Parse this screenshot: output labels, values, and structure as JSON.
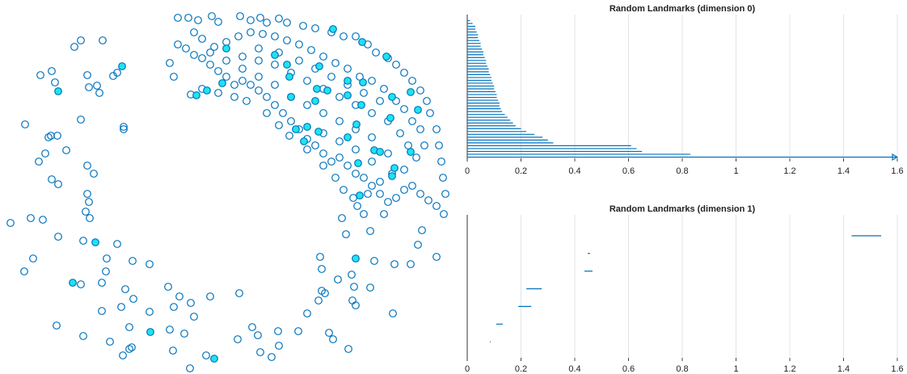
{
  "chart_data": [
    {
      "type": "scatter",
      "xlim": [
        0,
        560
      ],
      "ylim": [
        465,
        0
      ],
      "series": [
        {
          "color": "#0072bd",
          "fill": "none",
          "x": [
            100,
            127,
            92,
            64,
            50,
            68,
            108,
            110,
            120,
            123,
            145,
            140,
            153,
            153,
            31,
            100,
            63,
            60,
            71,
            56,
            82,
            48,
            108,
            116,
            64,
            72,
            108,
            110,
            106,
            111,
            13,
            38,
            53,
            72,
            103,
            145,
            41,
            30,
            132,
            164,
            185,
            131,
            126,
            100,
            155,
            165,
            208,
            222,
            236,
            260,
            296,
            126,
            150,
            185,
            215,
            240,
            70,
            160,
            210,
            228,
            103,
            136,
            160,
            152,
            163,
            214,
            235,
            255,
            294,
            312,
            319,
            322,
            336,
            345,
            344,
            369,
            380,
            394,
            398,
            402,
            396,
            398,
            418,
            407,
            412,
            431,
            436,
            440,
            438,
            435,
            458,
            463,
            488,
            486,
            508,
            517,
            522,
            540,
            475,
            458,
            428,
            450,
            423,
            442,
            220,
            233,
            245,
            262,
            270,
            297,
            310,
            322,
            330,
            345,
            355,
            375,
            390,
            410,
            425,
            440,
            455,
            465,
            480,
            490,
            500,
            510,
            520,
            528,
            532,
            540,
            543,
            546,
            548,
            551,
            549,
            540,
            530,
            520,
            510,
            500,
            490,
            480,
            470,
            460,
            450,
            440,
            430,
            420,
            410,
            400,
            390,
            380,
            370,
            360,
            350,
            340,
            330,
            320,
            310,
            300,
            290,
            280,
            270,
            260,
            250,
            240,
            230,
            220,
            210,
            215,
            236,
            250,
            270,
            290,
            305,
            330,
            345,
            358,
            380,
            400,
            415,
            425,
            437,
            455,
            470,
            485,
            500,
            515,
            525,
            520,
            510,
            500,
            490,
            475,
            460,
            445,
            430,
            415,
            400,
            385,
            370,
            355,
            340,
            325,
            310,
            295,
            280,
            265,
            250,
            240,
            300,
            320,
            340,
            360,
            380,
            400,
            420,
            440,
            460,
            480,
            495,
            505,
            320,
            345,
            370,
            390,
            410,
            430,
            450,
            470,
            460,
            440,
            420,
            400,
            380,
            360,
            340,
            320,
            300,
            280,
            260,
            440,
            460,
            480,
            420,
            400
          ],
          "values": [
            50,
            50,
            58,
            88,
            93,
            102,
            93,
            108,
            106,
            115,
            90,
            94,
            157,
            160,
            154,
            148,
            168,
            170,
            168,
            190,
            186,
            200,
            205,
            215,
            222,
            228,
            240,
            250,
            262,
            270,
            276,
            270,
            272,
            293,
            298,
            302,
            320,
            336,
            320,
            323,
            327,
            336,
            350,
            352,
            358,
            370,
            355,
            367,
            375,
            367,
            363,
            385,
            380,
            386,
            380,
            392,
            403,
            405,
            408,
            413,
            416,
            423,
            432,
            440,
            430,
            434,
            456,
            440,
            420,
            405,
            415,
            436,
            442,
            428,
            410,
            410,
            388,
            372,
            360,
            363,
            318,
            333,
            346,
            412,
            420,
            432,
            372,
            378,
            355,
            340,
            356,
            323,
            327,
            388,
            327,
            303,
            285,
            318,
            265,
            286,
            290,
            265,
            270,
            255,
            22,
            22,
            25,
            20,
            27,
            20,
            25,
            22,
            28,
            23,
            28,
            32,
            35,
            40,
            45,
            45,
            55,
            65,
            72,
            80,
            90,
            100,
            112,
            125,
            140,
            160,
            180,
            200,
            220,
            240,
            265,
            255,
            248,
            240,
            230,
            235,
            245,
            250,
            240,
            230,
            220,
            215,
            205,
            195,
            200,
            190,
            180,
            172,
            160,
            150,
            140,
            130,
            120,
            112,
            105,
            100,
            105,
            95,
            88,
            80,
            72,
            68,
            60,
            55,
            78,
            95,
            117,
            110,
            115,
            120,
            125,
            140,
            155,
            168,
            185,
            205,
            220,
            235,
            245,
            240,
            225,
            215,
            210,
            195,
            180,
            160,
            150,
            135,
            125,
            110,
            100,
            95,
            85,
            78,
            70,
            62,
            55,
            50,
            45,
            42,
            40,
            45,
            52,
            58,
            48,
            40,
            70,
            75,
            80,
            90,
            100,
            110,
            120,
            130,
            140,
            150,
            165,
            180,
            60,
            65,
            75,
            85,
            95,
            105,
            115,
            125,
            170,
            160,
            150,
            140,
            130,
            120,
            105,
            95,
            85,
            75,
            65,
            185,
            200,
            190,
            175,
            165
          ]
        },
        {
          "color": "#0072bd",
          "fill": "#1fe3ee",
          "x": [
            151,
            72,
            118,
            90,
            186,
            265,
            440,
            412,
            448,
            478,
            280,
            340,
            395,
            355,
            358,
            430,
            405,
            449,
            392,
            275,
            256,
            243,
            360,
            390,
            430,
            447,
            485,
            508,
            517,
            483,
            441,
            380,
            366,
            394,
            376,
            430,
            463,
            470,
            508,
            443,
            488,
            485,
            445
          ],
          "values": [
            82,
            113,
            300,
            350,
            411,
            444,
            320,
            36,
            52,
            70,
            60,
            68,
            82,
            80,
            95,
            100,
            112,
            102,
            110,
            103,
            112,
            118,
            120,
            125,
            118,
            130,
            120,
            114,
            136,
            146,
            154,
            157,
            160,
            163,
            175,
            170,
            186,
            188,
            188,
            202,
            208,
            218,
            242
          ]
        }
      ]
    },
    {
      "type": "barcode",
      "title": "Random Landmarks (dimension 0)",
      "color": "#0072bd",
      "births": [
        0,
        0,
        0,
        0,
        0,
        0,
        0,
        0,
        0,
        0,
        0,
        0,
        0,
        0,
        0,
        0,
        0,
        0,
        0,
        0,
        0,
        0,
        0,
        0,
        0,
        0,
        0,
        0,
        0,
        0,
        0,
        0,
        0,
        0,
        0,
        0,
        0,
        0,
        0,
        0,
        0,
        0,
        0,
        0,
        0,
        0,
        0,
        0,
        0
      ],
      "deaths": [
        0.01,
        0.02,
        0.03,
        0.03,
        0.035,
        0.04,
        0.04,
        0.045,
        0.05,
        0.05,
        0.055,
        0.06,
        0.06,
        0.065,
        0.07,
        0.07,
        0.075,
        0.08,
        0.08,
        0.085,
        0.09,
        0.09,
        0.095,
        0.1,
        0.1,
        0.105,
        0.11,
        0.11,
        0.115,
        0.12,
        0.12,
        0.125,
        0.13,
        0.14,
        0.15,
        0.16,
        0.17,
        0.18,
        0.2,
        0.22,
        0.25,
        0.28,
        0.3,
        0.32,
        0.61,
        0.63,
        0.65,
        0.83,
        null
      ],
      "xlim": [
        0,
        1.6
      ],
      "xticks": [
        0,
        0.2,
        0.4,
        0.6,
        0.8,
        1,
        1.2,
        1.4,
        1.6
      ],
      "grid": true
    },
    {
      "type": "barcode",
      "title": "Random Landmarks (dimension 1)",
      "color": "#0072bd",
      "births": [
        1.43,
        0.448,
        0.436,
        0.22,
        0.19,
        0.108,
        0.084
      ],
      "deaths": [
        1.54,
        0.457,
        0.466,
        0.277,
        0.238,
        0.132,
        0.087
      ],
      "xlim": [
        0,
        1.6
      ],
      "xticks": [
        0,
        0.2,
        0.4,
        0.6,
        0.8,
        1,
        1.2,
        1.4,
        1.6
      ],
      "grid": true
    }
  ]
}
